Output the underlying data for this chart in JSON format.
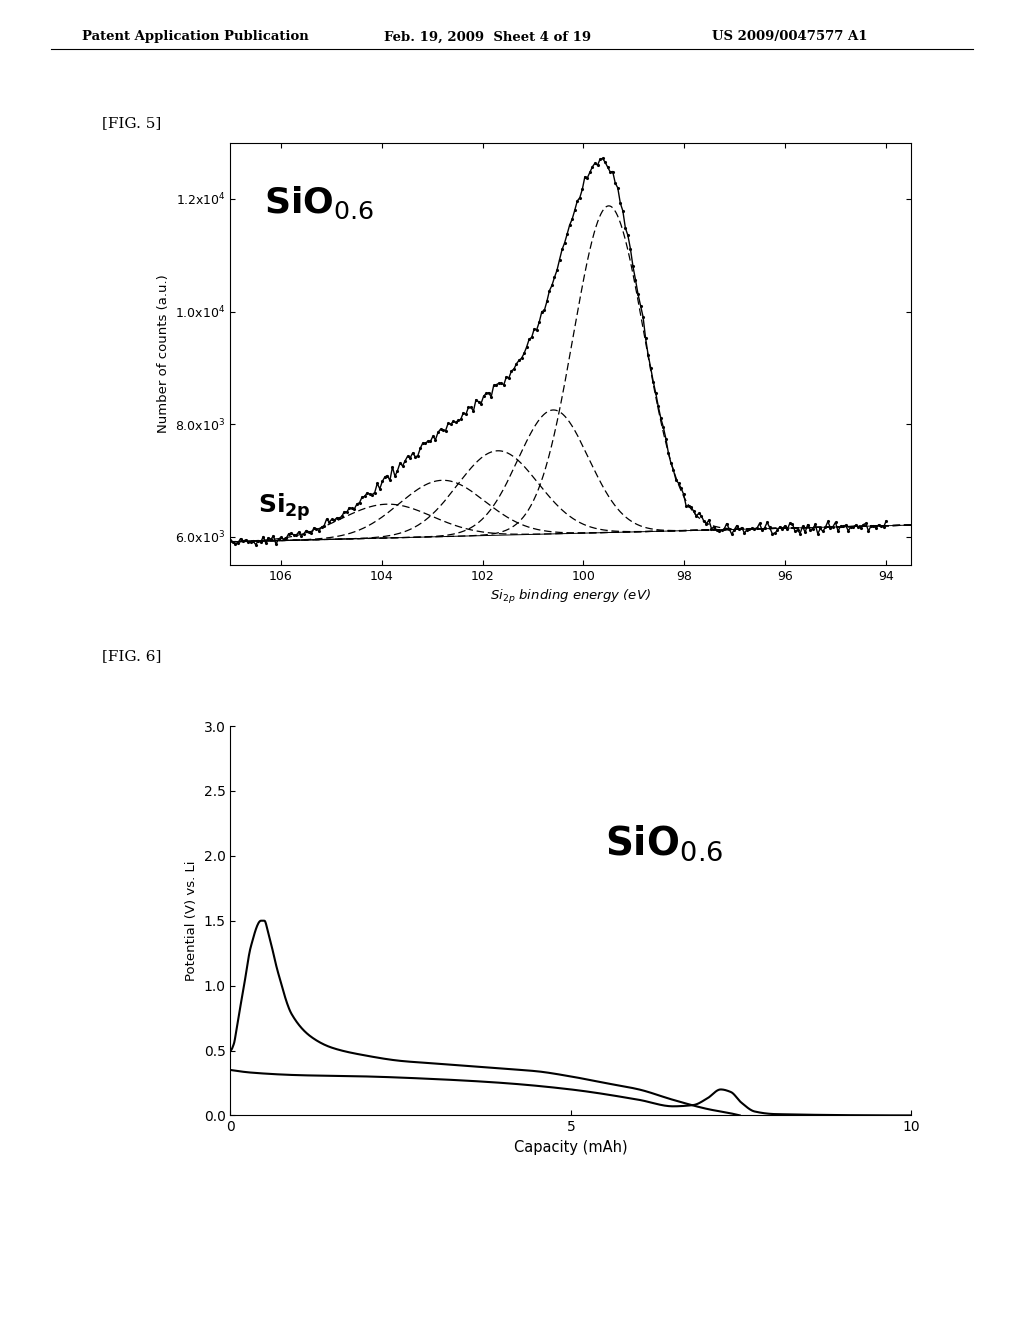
{
  "header_left": "Patent Application Publication",
  "header_mid": "Feb. 19, 2009  Sheet 4 of 19",
  "header_right": "US 2009/0047577 A1",
  "fig5_label": "[FIG. 5]",
  "fig6_label": "[FIG. 6]",
  "fig5_xlabel": "Si$_{2p}$ binding energy (eV)",
  "fig5_ylabel": "Number of counts (a.u.)",
  "fig5_yticks": [
    6000,
    8000,
    10000,
    12000
  ],
  "fig5_ytick_labels": [
    "6.0x10$^3$",
    "8.0x10$^3$",
    "1.0x10$^4$",
    "1.2x10$^4$"
  ],
  "fig5_xticks": [
    106,
    104,
    102,
    100,
    98,
    96,
    94
  ],
  "fig5_sio_label": "SiO",
  "fig5_sio_sub": "0.6",
  "fig5_si2p_label": "Si",
  "fig5_si2p_sub": "2p",
  "fig6_xlabel": "Capacity (mAh)",
  "fig6_ylabel": "Potential (V) vs. Li",
  "fig6_xlim": [
    0,
    10
  ],
  "fig6_ylim": [
    0,
    3.0
  ],
  "fig6_xticks": [
    0,
    5,
    10
  ],
  "fig6_yticks": [
    0.0,
    0.5,
    1.0,
    1.5,
    2.0,
    2.5,
    3.0
  ],
  "fig6_sio_label": "SiO",
  "fig6_sio_sub": "0.6",
  "background_color": "#ffffff",
  "line_color": "#000000"
}
